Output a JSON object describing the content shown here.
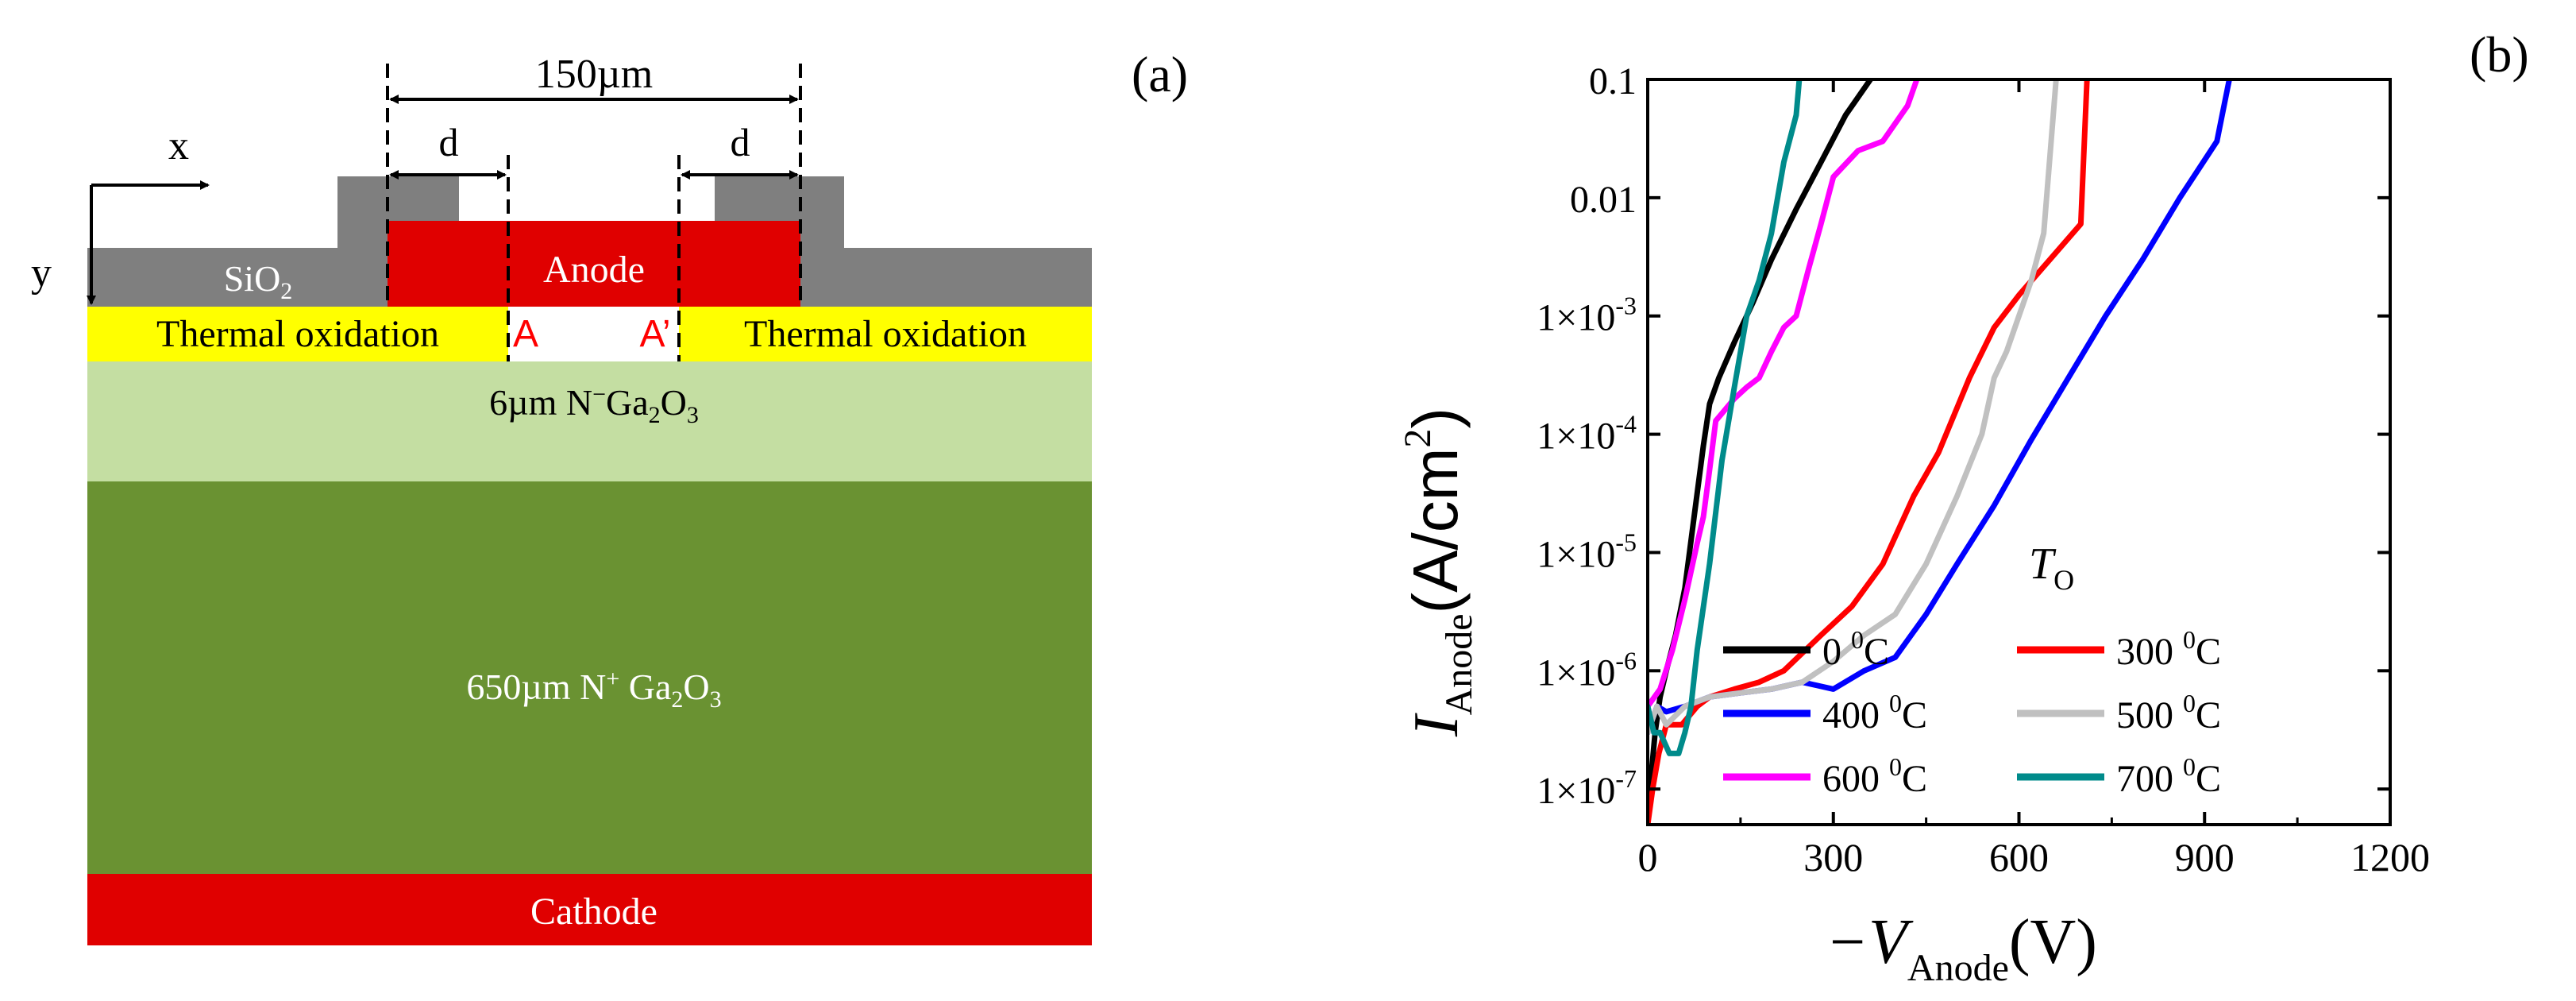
{
  "panel_a": {
    "label": "(a)",
    "dimension_150": "150µm",
    "dimension_d_left": "d",
    "dimension_d_right": "d",
    "axis_x": "x",
    "axis_y": "y",
    "sio2": "SiO",
    "sio2_sub": "2",
    "anode": "Anode",
    "point_a": "A",
    "point_a_prime": "A’",
    "thermal_left": "Thermal oxidation",
    "thermal_right": "Thermal oxidation",
    "drift_pre": "6µm N",
    "drift_sup": "−",
    "drift_mid": "Ga",
    "drift_sub1": "2",
    "drift_o": "O",
    "drift_sub2": "3",
    "sub_pre": "650µm  N",
    "sub_sup": "+",
    "sub_mid": " Ga",
    "sub_sub1": "2",
    "sub_o": "O",
    "sub_sub2": "3",
    "cathode": "Cathode",
    "colors": {
      "sio2": "#7f7f7f",
      "anode": "#e00000",
      "thermal": "#ffff00",
      "drift": "#c4dea2",
      "substrate": "#6a9232",
      "cathode": "#e00000"
    }
  },
  "panel_b": {
    "label": "(b)",
    "y_title_main": "I",
    "y_title_sub": "Anode",
    "y_title_unit": "(A/cm",
    "y_title_unit_sup": "2",
    "y_title_close": ")",
    "x_title_main": "−V",
    "x_title_sub": "Anode",
    "x_title_unit": "(V)",
    "legend_title": "T",
    "legend_title_sub": "O",
    "deg": "0",
    "unit_c": "C"
  },
  "chart_data": {
    "type": "line",
    "title": "",
    "xlabel": "−V_Anode (V)",
    "ylabel": "I_Anode (A/cm²)",
    "xlim": [
      0,
      1200
    ],
    "ylim": [
      5e-08,
      0.1
    ],
    "yscale": "log",
    "xticks": [
      0,
      300,
      600,
      900,
      1200
    ],
    "xtick_labels": [
      "0",
      "300",
      "600",
      "900",
      "1200"
    ],
    "yticks": [
      1e-07,
      1e-06,
      1e-05,
      0.0001,
      0.001,
      0.01,
      0.1
    ],
    "ytick_labels": [
      {
        "base": "1×10",
        "exp": "-7"
      },
      {
        "base": "1×10",
        "exp": "-6"
      },
      {
        "base": "1×10",
        "exp": "-5"
      },
      {
        "base": "1×10",
        "exp": "-4"
      },
      {
        "base": "1×10",
        "exp": "-3"
      },
      {
        "base": "0.01",
        "exp": ""
      },
      {
        "base": "0.1",
        "exp": ""
      }
    ],
    "legend_location": "bottom-right",
    "series": [
      {
        "name": "0 ⁰C",
        "legend_num": "0",
        "color": "#000000",
        "x": [
          0,
          5,
          12,
          20,
          30,
          45,
          60,
          75,
          90,
          100,
          115,
          140,
          170,
          200,
          240,
          280,
          320,
          360
        ],
        "y": [
          5e-08,
          1.2e-07,
          3e-07,
          6e-07,
          1e-06,
          2e-06,
          5e-06,
          2e-05,
          8e-05,
          0.00018,
          0.0003,
          0.0006,
          0.0013,
          0.003,
          0.008,
          0.02,
          0.05,
          0.1
        ]
      },
      {
        "name": "300 ⁰C",
        "legend_num": "300",
        "color": "#ff0000",
        "x": [
          0,
          8,
          18,
          30,
          55,
          80,
          100,
          140,
          180,
          220,
          280,
          330,
          380,
          430,
          470,
          520,
          560,
          600,
          650,
          700,
          710
        ],
        "y": [
          5e-08,
          1e-07,
          2e-07,
          3.5e-07,
          3.5e-07,
          5e-07,
          6e-07,
          7e-07,
          8e-07,
          1e-06,
          2e-06,
          3.5e-06,
          8e-06,
          3e-05,
          7e-05,
          0.0003,
          0.0008,
          0.0015,
          0.003,
          0.006,
          0.1
        ]
      },
      {
        "name": "400 ⁰C",
        "legend_num": "400",
        "color": "#0000ff",
        "x": [
          0,
          15,
          30,
          60,
          100,
          150,
          200,
          250,
          300,
          350,
          400,
          450,
          500,
          560,
          620,
          680,
          740,
          800,
          860,
          920,
          940
        ],
        "y": [
          3e-07,
          5e-07,
          4.5e-07,
          5e-07,
          6e-07,
          6.5e-07,
          7e-07,
          8e-07,
          7e-07,
          1e-06,
          1.3e-06,
          3e-06,
          8e-06,
          2.5e-05,
          9e-05,
          0.0003,
          0.001,
          0.003,
          0.01,
          0.03,
          0.1
        ]
      },
      {
        "name": "500 ⁰C",
        "legend_num": "500",
        "color": "#c0c0c0",
        "x": [
          0,
          15,
          30,
          60,
          100,
          150,
          200,
          250,
          300,
          350,
          400,
          450,
          500,
          540,
          560,
          580,
          600,
          620,
          640,
          660
        ],
        "y": [
          3e-07,
          5e-07,
          3.5e-07,
          5e-07,
          6e-07,
          6.5e-07,
          7e-07,
          8e-07,
          1.2e-06,
          2e-06,
          3e-06,
          8e-06,
          3e-05,
          0.0001,
          0.0003,
          0.0005,
          0.001,
          0.002,
          0.005,
          0.1
        ]
      },
      {
        "name": "600 ⁰C",
        "legend_num": "600",
        "color": "#ff00ff",
        "x": [
          0,
          20,
          40,
          60,
          80,
          90,
          100,
          110,
          120,
          140,
          160,
          180,
          200,
          220,
          240,
          260,
          280,
          300,
          340,
          380,
          420,
          435
        ],
        "y": [
          5e-07,
          7e-07,
          1.5e-06,
          4e-06,
          1.2e-05,
          2e-05,
          5e-05,
          0.00013,
          0.00015,
          0.0002,
          0.00025,
          0.0003,
          0.0005,
          0.0008,
          0.001,
          0.0025,
          0.006,
          0.015,
          0.025,
          0.03,
          0.06,
          0.1
        ]
      },
      {
        "name": "700 ⁰C",
        "legend_num": "700",
        "color": "#008b8b",
        "x": [
          0,
          10,
          20,
          35,
          50,
          60,
          70,
          80,
          100,
          120,
          140,
          160,
          180,
          200,
          220,
          240,
          245
        ],
        "y": [
          5e-07,
          3e-07,
          3e-07,
          2e-07,
          2e-07,
          3e-07,
          5e-07,
          1.5e-06,
          8e-06,
          6e-05,
          0.00025,
          0.001,
          0.002,
          0.005,
          0.02,
          0.05,
          0.1
        ]
      }
    ]
  }
}
